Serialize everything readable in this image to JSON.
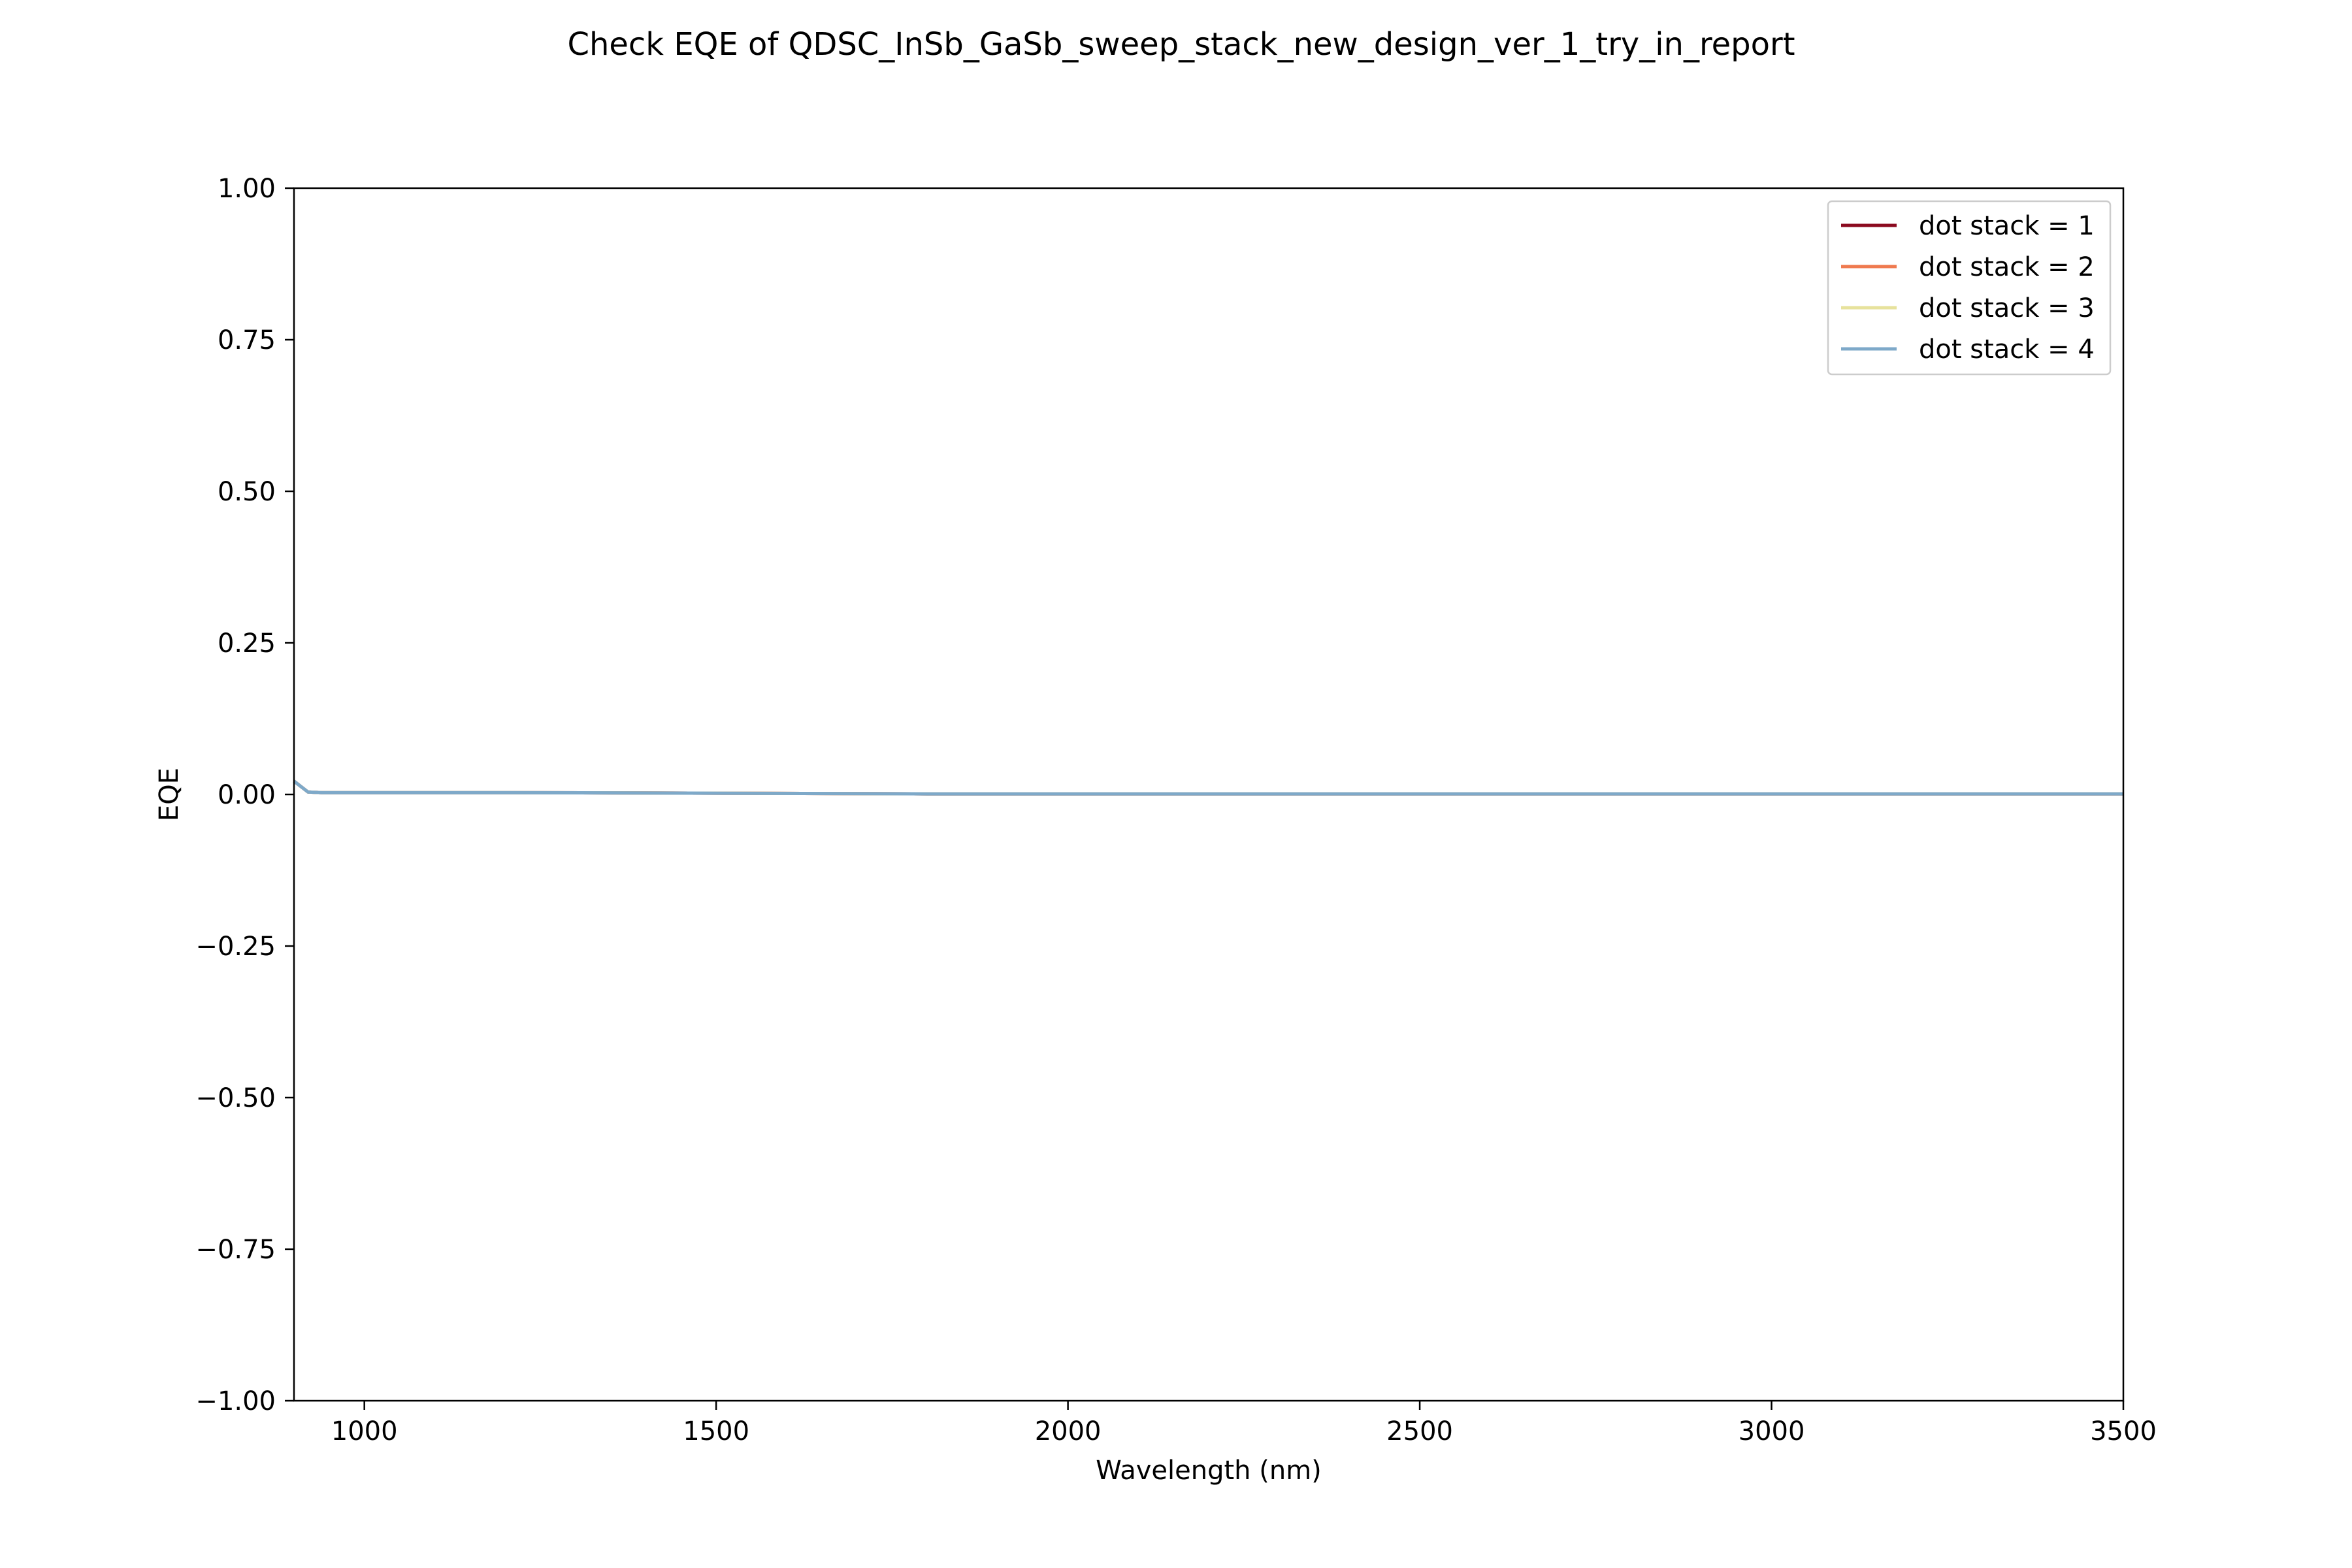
{
  "chart_data": {
    "type": "line",
    "title": "Check EQE of QDSC_InSb_GaSb_sweep_stack_new_design_ver_1_try_in_report",
    "xlabel": "Wavelength (nm)",
    "ylabel": "EQE",
    "xlim": [
      900,
      3500
    ],
    "ylim": [
      -1.0,
      1.0
    ],
    "x_ticks": [
      1000,
      1500,
      2000,
      2500,
      3000,
      3500
    ],
    "x_tick_labels": [
      "1000",
      "1500",
      "2000",
      "2500",
      "3000",
      "3500"
    ],
    "y_ticks": [
      1.0,
      0.75,
      0.5,
      0.25,
      0.0,
      -0.25,
      -0.5,
      -0.75,
      -1.0
    ],
    "y_tick_labels": [
      "1.00",
      "0.75",
      "0.50",
      "0.25",
      "0.00",
      "−0.25",
      "−0.50",
      "−0.75",
      "−1.00"
    ],
    "grid": false,
    "legend_position": "top-right",
    "x": [
      900,
      920,
      940,
      1000,
      1200,
      1500,
      1800,
      2000,
      2500,
      3000,
      3500
    ],
    "series": [
      {
        "name": "dot stack = 1",
        "color": "#8b0a1f",
        "values": [
          0.022,
          0.004,
          0.003,
          0.003,
          0.003,
          0.002,
          0.001,
          0.001,
          0.001,
          0.001,
          0.001
        ]
      },
      {
        "name": "dot stack = 2",
        "color": "#ef7a4f",
        "values": [
          0.022,
          0.004,
          0.003,
          0.003,
          0.003,
          0.002,
          0.001,
          0.001,
          0.001,
          0.001,
          0.001
        ]
      },
      {
        "name": "dot stack = 3",
        "color": "#e7e29c",
        "values": [
          0.022,
          0.004,
          0.003,
          0.003,
          0.003,
          0.002,
          0.001,
          0.001,
          0.001,
          0.001,
          0.001
        ]
      },
      {
        "name": "dot stack = 4",
        "color": "#7ea9c9",
        "values": [
          0.022,
          0.004,
          0.003,
          0.003,
          0.003,
          0.002,
          0.001,
          0.001,
          0.001,
          0.001,
          0.001
        ]
      }
    ]
  }
}
